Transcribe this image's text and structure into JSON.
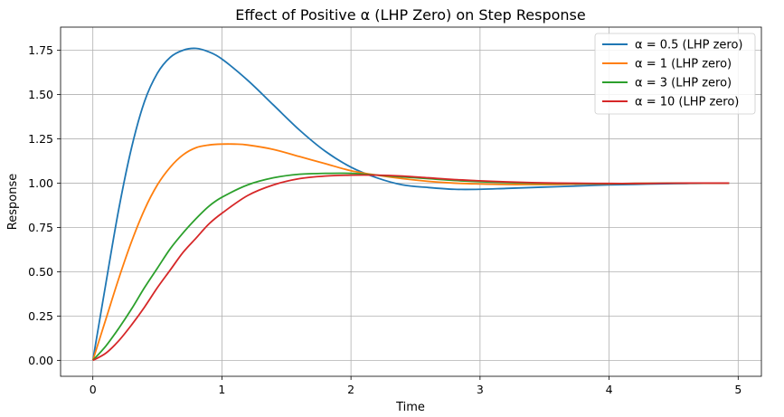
{
  "chart_data": {
    "type": "line",
    "title": "Effect of Positive α (LHP Zero) on Step Response",
    "xlabel": "Time",
    "ylabel": "Response",
    "xlim": [
      -0.25,
      5.18
    ],
    "ylim": [
      -0.09,
      1.88
    ],
    "xticks": [
      0,
      1,
      2,
      3,
      4,
      5
    ],
    "yticks": [
      0.0,
      0.25,
      0.5,
      0.75,
      1.0,
      1.25,
      1.5,
      1.75
    ],
    "xtick_labels": [
      "0",
      "1",
      "2",
      "3",
      "4",
      "5"
    ],
    "ytick_labels": [
      "0.00",
      "0.25",
      "0.50",
      "0.75",
      "1.00",
      "1.25",
      "1.50",
      "1.75"
    ],
    "grid": true,
    "legend_position": "top-right",
    "series": [
      {
        "name": "α = 0.5 (LHP zero)",
        "color": "#1f77b4",
        "x": [
          0,
          0.1,
          0.2,
          0.3,
          0.4,
          0.5,
          0.6,
          0.7,
          0.8,
          0.9,
          1.0,
          1.2,
          1.4,
          1.6,
          1.8,
          2.0,
          2.2,
          2.4,
          2.6,
          2.8,
          3.0,
          3.2,
          3.4,
          3.6,
          3.8,
          4.0,
          4.2,
          4.4,
          4.6,
          4.8,
          4.93
        ],
        "values": [
          0,
          0.43,
          0.85,
          1.2,
          1.46,
          1.62,
          1.71,
          1.75,
          1.76,
          1.74,
          1.7,
          1.58,
          1.44,
          1.3,
          1.18,
          1.09,
          1.03,
          0.99,
          0.975,
          0.965,
          0.965,
          0.97,
          0.975,
          0.98,
          0.985,
          0.99,
          0.993,
          0.996,
          0.998,
          1.0,
          1.0
        ]
      },
      {
        "name": "α = 1 (LHP zero)",
        "color": "#ff7f0e",
        "x": [
          0,
          0.1,
          0.2,
          0.3,
          0.4,
          0.5,
          0.6,
          0.7,
          0.8,
          0.9,
          1.0,
          1.1,
          1.2,
          1.4,
          1.6,
          1.8,
          2.0,
          2.2,
          2.4,
          2.6,
          2.8,
          3.0,
          3.2,
          3.4,
          3.6,
          3.8,
          4.0,
          4.2,
          4.4,
          4.6,
          4.8,
          4.93
        ],
        "values": [
          0,
          0.23,
          0.46,
          0.67,
          0.85,
          0.99,
          1.09,
          1.16,
          1.2,
          1.215,
          1.22,
          1.22,
          1.215,
          1.19,
          1.15,
          1.11,
          1.07,
          1.045,
          1.025,
          1.01,
          1.0,
          0.995,
          0.992,
          0.992,
          0.993,
          0.995,
          0.996,
          0.998,
          0.999,
          1.0,
          1.0,
          1.0
        ]
      },
      {
        "name": "α = 3 (LHP zero)",
        "color": "#2ca02c",
        "x": [
          0,
          0.1,
          0.2,
          0.3,
          0.4,
          0.5,
          0.6,
          0.7,
          0.8,
          0.9,
          1.0,
          1.2,
          1.4,
          1.6,
          1.8,
          2.0,
          2.2,
          2.4,
          2.6,
          2.8,
          3.0,
          3.2,
          3.4,
          3.6,
          3.8,
          4.0,
          4.2,
          4.4,
          4.6,
          4.8,
          4.93
        ],
        "values": [
          0,
          0.08,
          0.18,
          0.29,
          0.41,
          0.52,
          0.63,
          0.72,
          0.8,
          0.87,
          0.92,
          0.99,
          1.03,
          1.05,
          1.055,
          1.055,
          1.045,
          1.035,
          1.025,
          1.015,
          1.008,
          1.003,
          1.0,
          0.998,
          0.997,
          0.997,
          0.998,
          0.999,
          1.0,
          1.0,
          1.0
        ]
      },
      {
        "name": "α = 10 (LHP zero)",
        "color": "#d62728",
        "x": [
          0,
          0.1,
          0.2,
          0.3,
          0.4,
          0.5,
          0.6,
          0.7,
          0.8,
          0.9,
          1.0,
          1.2,
          1.4,
          1.6,
          1.8,
          2.0,
          2.2,
          2.4,
          2.6,
          2.8,
          3.0,
          3.2,
          3.4,
          3.6,
          3.8,
          4.0,
          4.2,
          4.4,
          4.6,
          4.8,
          4.93
        ],
        "values": [
          0,
          0.04,
          0.11,
          0.2,
          0.3,
          0.41,
          0.51,
          0.61,
          0.69,
          0.77,
          0.83,
          0.93,
          0.99,
          1.025,
          1.04,
          1.045,
          1.045,
          1.04,
          1.03,
          1.02,
          1.013,
          1.007,
          1.003,
          1.0,
          0.999,
          0.998,
          0.998,
          0.999,
          1.0,
          1.0,
          1.0
        ]
      }
    ]
  }
}
